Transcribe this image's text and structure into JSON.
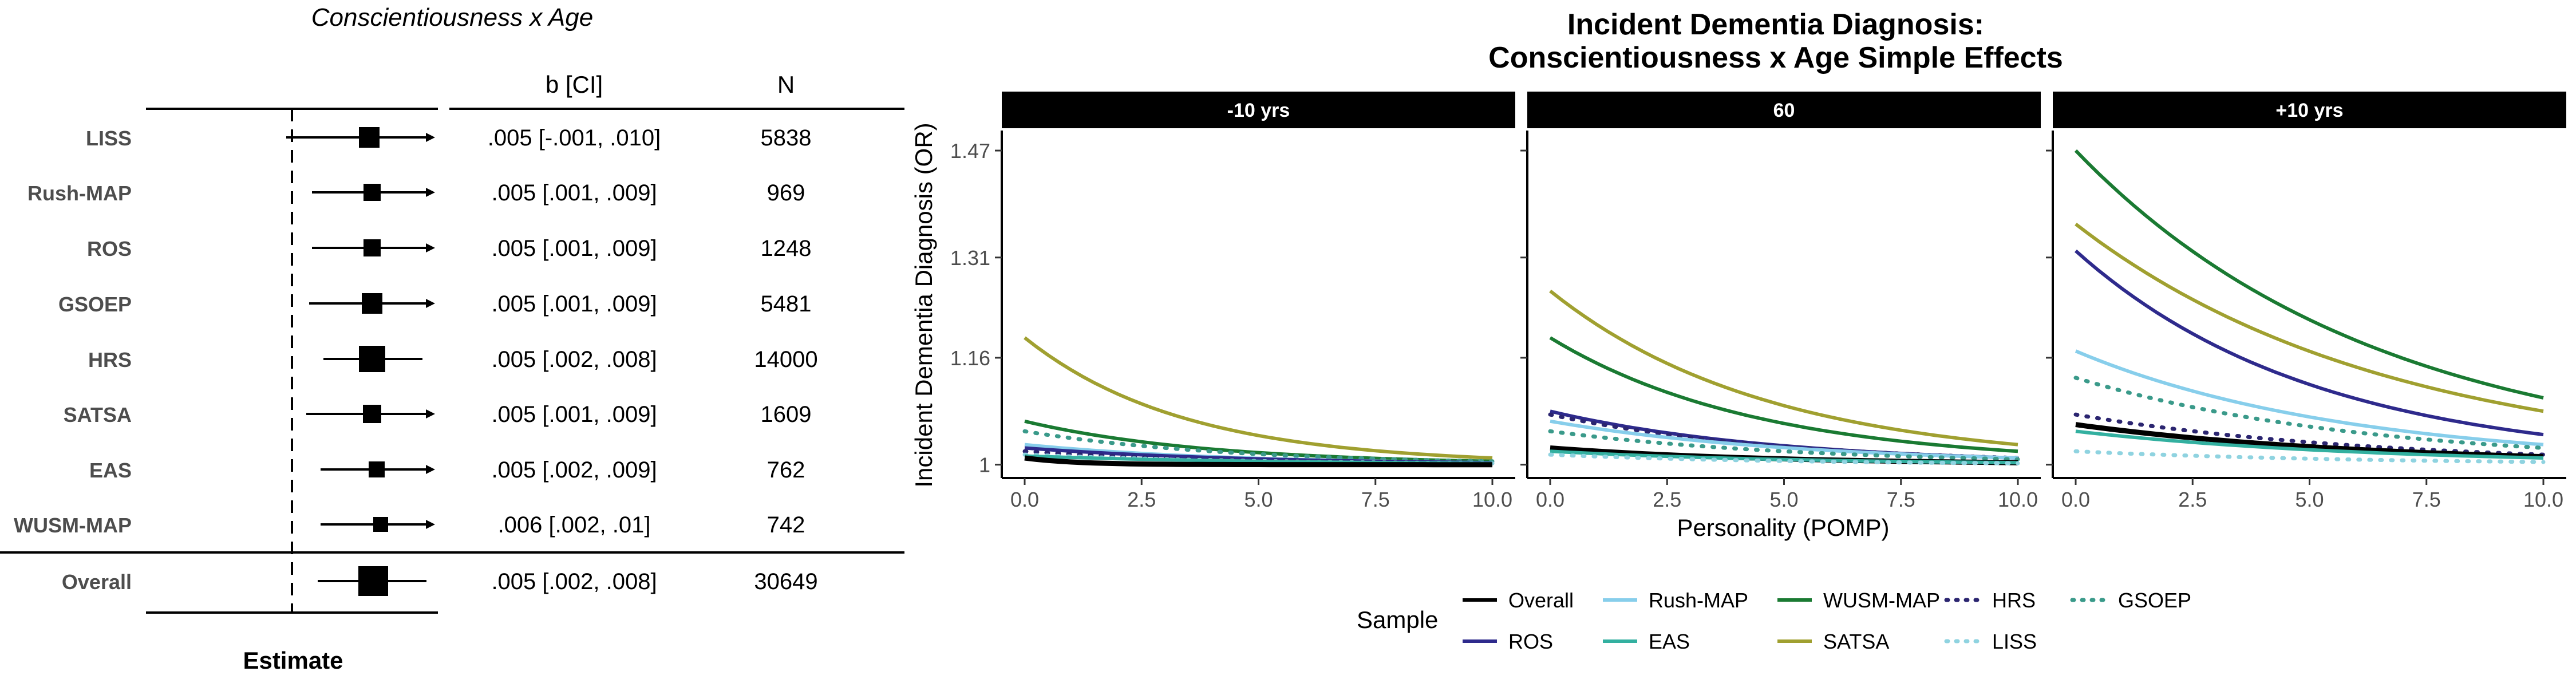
{
  "chart_data": [
    {
      "type": "forest",
      "title": "Conscientiousness x Age",
      "col_headers": {
        "estimate": "b [CI]",
        "n": "N"
      },
      "xlabel": "Estimate",
      "rows": [
        {
          "label": "LISS",
          "estimate_text": ".005 [-.001, .010]",
          "n": "5838"
        },
        {
          "label": "Rush-MAP",
          "estimate_text": ".005 [.001, .009]",
          "n": "969"
        },
        {
          "label": "ROS",
          "estimate_text": ".005 [.001, .009]",
          "n": "1248"
        },
        {
          "label": "GSOEP",
          "estimate_text": ".005 [.001, .009]",
          "n": "5481"
        },
        {
          "label": "HRS",
          "estimate_text": ".005 [.002, .008]",
          "n": "14000"
        },
        {
          "label": "SATSA",
          "estimate_text": ".005 [.001, .009]",
          "n": "1609"
        },
        {
          "label": "EAS",
          "estimate_text": ".005 [.002, .009]",
          "n": "762"
        },
        {
          "label": "WUSM-MAP",
          "estimate_text": ".006 [.002, .01]",
          "n": "742"
        },
        {
          "label": "Overall",
          "estimate_text": ".005 [.002, .008]",
          "n": "30649"
        }
      ]
    },
    {
      "type": "line",
      "title": "Incident Dementia Diagnosis:",
      "subtitle": "Conscientiousness x Age Simple Effects",
      "xlabel": "Personality (POMP)",
      "ylabel": "Incident Dementia Diagnosis (OR)",
      "x_ticks": [
        "0.0",
        "2.5",
        "5.0",
        "7.5",
        "10.0"
      ],
      "y_ticks": [
        1,
        1.16,
        1.31,
        1.47
      ],
      "y_tick_labels": [
        "1",
        "1.16",
        "1.31",
        "1.47"
      ],
      "xlim": [
        0,
        10
      ],
      "ylim": [
        0.98,
        1.5
      ],
      "legend_title": "Sample",
      "legend": [
        {
          "name": "Overall",
          "color": "#000000",
          "style": "solid"
        },
        {
          "name": "Rush-MAP",
          "color": "#87CEEB",
          "style": "solid"
        },
        {
          "name": "WUSM-MAP",
          "color": "#1A7A32",
          "style": "solid"
        },
        {
          "name": "HRS",
          "color": "#2B2570",
          "style": "dotted"
        },
        {
          "name": "GSOEP",
          "color": "#3A9A8A",
          "style": "dotted"
        },
        {
          "name": "ROS",
          "color": "#2E2A8C",
          "style": "solid"
        },
        {
          "name": "EAS",
          "color": "#33B0A0",
          "style": "solid"
        },
        {
          "name": "SATSA",
          "color": "#A0A030",
          "style": "solid"
        },
        {
          "name": "LISS",
          "color": "#8FD3E0",
          "style": "dotted"
        }
      ],
      "facets": [
        {
          "label": "-10 yrs",
          "series": [
            {
              "name": "SATSA",
              "start": 1.19,
              "end": 1.01
            },
            {
              "name": "WUSM-MAP",
              "start": 1.065,
              "end": 1.005
            },
            {
              "name": "GSOEP",
              "start": 1.05,
              "end": 1.005
            },
            {
              "name": "Rush-MAP",
              "start": 1.03,
              "end": 1.003
            },
            {
              "name": "ROS",
              "start": 1.025,
              "end": 1.003
            },
            {
              "name": "HRS",
              "start": 1.02,
              "end": 1.002
            },
            {
              "name": "LISS",
              "start": 1.015,
              "end": 1.002
            },
            {
              "name": "EAS",
              "start": 1.013,
              "end": 1.002
            },
            {
              "name": "Overall",
              "start": 1.01,
              "end": 1.0
            }
          ]
        },
        {
          "label": "60",
          "series": [
            {
              "name": "SATSA",
              "start": 1.26,
              "end": 1.03
            },
            {
              "name": "WUSM-MAP",
              "start": 1.19,
              "end": 1.02
            },
            {
              "name": "ROS",
              "start": 1.08,
              "end": 1.01
            },
            {
              "name": "HRS",
              "start": 1.075,
              "end": 1.01
            },
            {
              "name": "Rush-MAP",
              "start": 1.065,
              "end": 1.01
            },
            {
              "name": "GSOEP",
              "start": 1.05,
              "end": 1.008
            },
            {
              "name": "Overall",
              "start": 1.025,
              "end": 1.003
            },
            {
              "name": "EAS",
              "start": 1.02,
              "end": 1.003
            },
            {
              "name": "LISS",
              "start": 1.015,
              "end": 1.002
            }
          ]
        },
        {
          "label": "+10 yrs",
          "series": [
            {
              "name": "WUSM-MAP",
              "start": 1.47,
              "end": 1.1
            },
            {
              "name": "SATSA",
              "start": 1.36,
              "end": 1.08
            },
            {
              "name": "ROS",
              "start": 1.32,
              "end": 1.045
            },
            {
              "name": "Rush-MAP",
              "start": 1.17,
              "end": 1.03
            },
            {
              "name": "GSOEP",
              "start": 1.13,
              "end": 1.025
            },
            {
              "name": "HRS",
              "start": 1.075,
              "end": 1.015
            },
            {
              "name": "Overall",
              "start": 1.06,
              "end": 1.012
            },
            {
              "name": "EAS",
              "start": 1.05,
              "end": 1.01
            },
            {
              "name": "LISS",
              "start": 1.02,
              "end": 1.004
            }
          ]
        }
      ]
    }
  ]
}
